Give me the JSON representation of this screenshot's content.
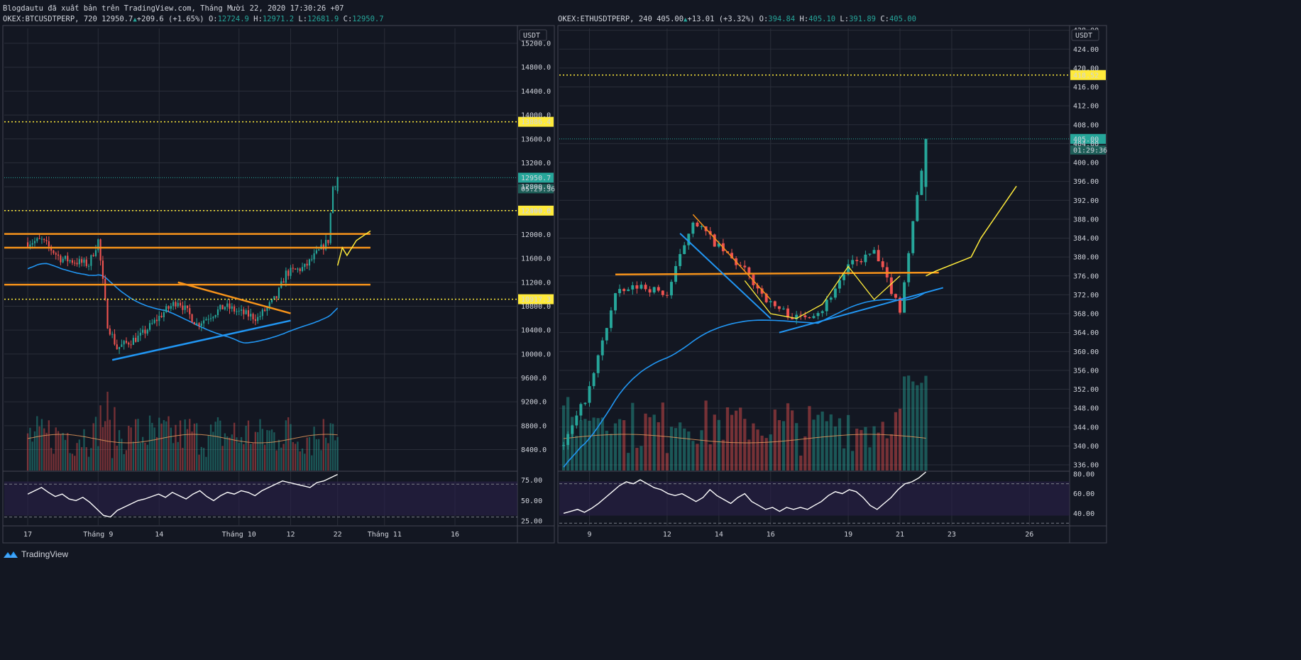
{
  "header": {
    "published": "Blogdautu đã xuất bản trên TradingView.com, Tháng Mười 22, 2020 17:30:26 +07"
  },
  "footer": {
    "brand": "TradingView"
  },
  "theme": {
    "bg": "#131722",
    "grid": "#2a2e39",
    "up": "#26a69a",
    "down": "#ef5350",
    "orange": "#f7931a",
    "blue": "#2196f3",
    "yellow": "#ffeb3b",
    "rsi_fill": "#2a1f4a"
  },
  "chart_data": [
    {
      "type": "candlestick",
      "symbol": "OKEX:BTCUSDTPERP",
      "interval": "720",
      "last": "12950.7",
      "change": "+209.6 (+1.65%)",
      "ohlc": {
        "o": "12724.9",
        "h": "12971.2",
        "l": "12681.9",
        "c": "12950.7"
      },
      "currency": "USDT",
      "countdown": "05:29:36",
      "y_ticks": [
        "15200.0",
        "14800.0",
        "14400.0",
        "14000.0",
        "13600.0",
        "13200.0",
        "12800.0",
        "12400.0",
        "12000.0",
        "11600.0",
        "11200.0",
        "10800.0",
        "10400.0",
        "10000.0",
        "9600.0",
        "9200.0",
        "8800.0",
        "8400.0"
      ],
      "y_range": [
        8050,
        15450
      ],
      "x_ticks": [
        "17",
        "Tháng 9",
        "14",
        "Tháng 10",
        "12",
        "22",
        "Tháng 11",
        "16"
      ],
      "x_tick_dates": [
        "2020-08-17",
        "2020-09-01",
        "2020-09-14",
        "2020-10-01",
        "2020-10-12",
        "2020-10-22",
        "2020-11-01",
        "2020-11-16"
      ],
      "horizontal_levels": [
        {
          "value": 13886.4,
          "label": "13886.4",
          "style": "dotted"
        },
        {
          "value": 12399.6,
          "label": "12399.6",
          "style": "dotted"
        },
        {
          "value": 10917.3,
          "label": "10917.3",
          "style": "dotted"
        }
      ],
      "resistance_lines": [
        12010,
        11780,
        11160
      ],
      "anchor_points": [
        {
          "date": "2020-08-17",
          "price": 11870
        },
        {
          "date": "2020-08-20",
          "price": 11900
        },
        {
          "date": "2020-08-24",
          "price": 11600
        },
        {
          "date": "2020-08-30",
          "price": 11500
        },
        {
          "date": "2020-09-01",
          "price": 11900
        },
        {
          "date": "2020-09-03",
          "price": 10500
        },
        {
          "date": "2020-09-05",
          "price": 10100
        },
        {
          "date": "2020-09-10",
          "price": 10300
        },
        {
          "date": "2020-09-15",
          "price": 10700
        },
        {
          "date": "2020-09-18",
          "price": 10900
        },
        {
          "date": "2020-09-22",
          "price": 10500
        },
        {
          "date": "2020-09-28",
          "price": 10800
        },
        {
          "date": "2020-10-01",
          "price": 10700
        },
        {
          "date": "2020-10-05",
          "price": 10600
        },
        {
          "date": "2020-10-09",
          "price": 10950
        },
        {
          "date": "2020-10-11",
          "price": 11350
        },
        {
          "date": "2020-10-15",
          "price": 11450
        },
        {
          "date": "2020-10-20",
          "price": 11900
        },
        {
          "date": "2020-10-21",
          "price": 12800
        },
        {
          "date": "2020-10-22",
          "price": 12950
        }
      ],
      "rsi_ticks": [
        "75.00",
        "50.00",
        "25.00"
      ],
      "rsi": [
        58,
        62,
        66,
        60,
        55,
        58,
        52,
        50,
        54,
        48,
        40,
        32,
        30,
        38,
        42,
        46,
        50,
        52,
        55,
        58,
        54,
        60,
        56,
        52,
        58,
        62,
        55,
        50,
        56,
        60,
        58,
        62,
        60,
        56,
        62,
        66,
        70,
        74,
        72,
        70,
        68,
        66,
        72,
        74,
        78,
        82
      ]
    },
    {
      "type": "candlestick",
      "symbol": "OKEX:ETHUSDTPERP",
      "interval": "240",
      "last": "405.00",
      "change": "+13.01 (+3.32%)",
      "ohlc": {
        "o": "394.84",
        "h": "405.10",
        "l": "391.89",
        "c": "405.00"
      },
      "currency": "USDT",
      "countdown": "01:29:36",
      "y_ticks": [
        "428.00",
        "424.00",
        "420.00",
        "416.00",
        "412.00",
        "408.00",
        "404.00",
        "400.00",
        "396.00",
        "392.00",
        "388.00",
        "384.00",
        "380.00",
        "376.00",
        "372.00",
        "368.00",
        "364.00",
        "360.00",
        "356.00",
        "352.00",
        "348.00",
        "344.00",
        "340.00",
        "336.00"
      ],
      "y_range": [
        334.8,
        428.4
      ],
      "x_ticks": [
        "9",
        "12",
        "14",
        "16",
        "19",
        "21",
        "23",
        "26"
      ],
      "x_tick_dates": [
        "2020-10-09",
        "2020-10-12",
        "2020-10-14",
        "2020-10-16",
        "2020-10-19",
        "2020-10-21",
        "2020-10-23",
        "2020-10-26"
      ],
      "horizontal_levels": [
        {
          "value": 418.52,
          "label": "418.52",
          "style": "dotted"
        }
      ],
      "support_level": 376.3,
      "anchor_points": [
        {
          "date": "2020-10-08",
          "price": 340
        },
        {
          "date": "2020-10-09",
          "price": 352
        },
        {
          "date": "2020-10-10",
          "price": 372
        },
        {
          "date": "2020-10-11",
          "price": 374
        },
        {
          "date": "2020-10-12",
          "price": 372
        },
        {
          "date": "2020-10-13",
          "price": 388
        },
        {
          "date": "2020-10-14",
          "price": 382
        },
        {
          "date": "2020-10-15",
          "price": 377
        },
        {
          "date": "2020-10-16",
          "price": 370
        },
        {
          "date": "2020-10-17",
          "price": 367
        },
        {
          "date": "2020-10-18",
          "price": 369
        },
        {
          "date": "2020-10-19",
          "price": 378
        },
        {
          "date": "2020-10-20",
          "price": 381
        },
        {
          "date": "2020-10-21",
          "price": 369
        },
        {
          "date": "2020-10-22",
          "price": 405
        }
      ],
      "rsi_ticks": [
        "80.00",
        "60.00",
        "40.00"
      ],
      "rsi": [
        40,
        42,
        44,
        41,
        45,
        50,
        56,
        62,
        68,
        72,
        70,
        74,
        70,
        66,
        64,
        60,
        58,
        60,
        56,
        52,
        56,
        64,
        58,
        54,
        50,
        56,
        60,
        52,
        48,
        44,
        46,
        42,
        46,
        44,
        46,
        44,
        48,
        52,
        58,
        62,
        60,
        64,
        62,
        56,
        48,
        44,
        50,
        56,
        64,
        70,
        72,
        76,
        82
      ]
    }
  ]
}
